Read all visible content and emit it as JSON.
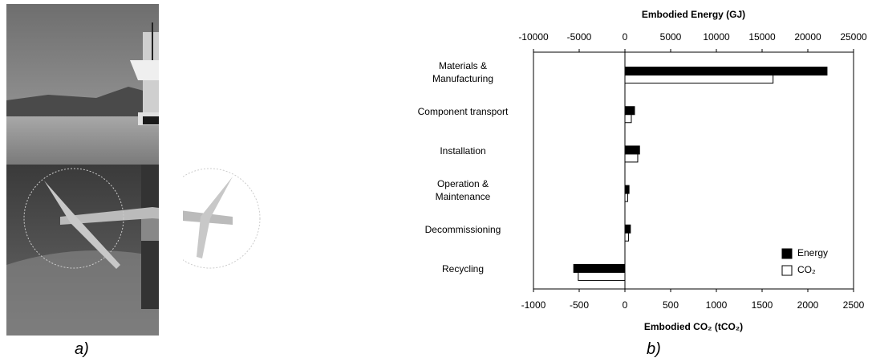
{
  "captions": [
    "a)",
    "b)"
  ],
  "chart_data": {
    "type": "bar",
    "orientation": "horizontal",
    "categories": [
      "Materials &\nManufacturing",
      "Component transport",
      "Installation",
      "Operation &\nMaintenance",
      "Decommissioning",
      "Recycling"
    ],
    "series": [
      {
        "name": "Energy",
        "color": "#000000",
        "axis": "x2",
        "values": [
          22100,
          1050,
          1600,
          450,
          600,
          -5600
        ]
      },
      {
        "name": "CO₂",
        "color": "#ffffff",
        "values": [
          1620,
          70,
          140,
          30,
          40,
          -510
        ]
      }
    ],
    "xlabel": "Embodied CO₂ (tCO₂)",
    "xlim": [
      -1000,
      2500
    ],
    "xticks": [
      -1000,
      -500,
      0,
      500,
      1000,
      1500,
      2000,
      2500
    ],
    "x2label": "Embodied Energy (GJ)",
    "x2lim": [
      -10000,
      25000
    ],
    "x2ticks": [
      -10000,
      -5000,
      0,
      5000,
      10000,
      15000,
      20000,
      25000
    ],
    "legend": "lower right"
  }
}
